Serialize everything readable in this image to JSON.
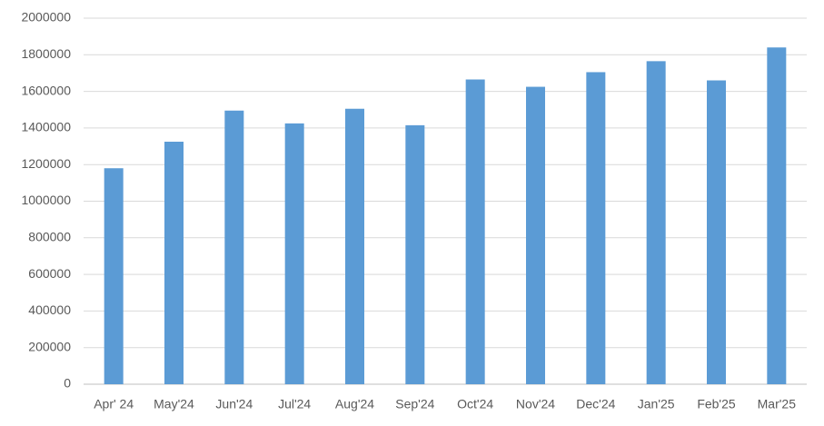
{
  "chart_data": {
    "type": "bar",
    "categories": [
      "Apr' 24",
      "May'24",
      "Jun'24",
      "Jul'24",
      "Aug'24",
      "Sep'24",
      "Oct'24",
      "Nov'24",
      "Dec'24",
      "Jan'25",
      "Feb'25",
      "Mar'25"
    ],
    "values": [
      1180000,
      1325000,
      1495000,
      1425000,
      1505000,
      1415000,
      1665000,
      1625000,
      1705000,
      1765000,
      1660000,
      1840000
    ],
    "color": "#5b9bd5",
    "ylim": [
      0,
      2000000
    ],
    "yticks": [
      0,
      200000,
      400000,
      600000,
      800000,
      1000000,
      1200000,
      1400000,
      1600000,
      1800000,
      2000000
    ],
    "grid": true
  }
}
